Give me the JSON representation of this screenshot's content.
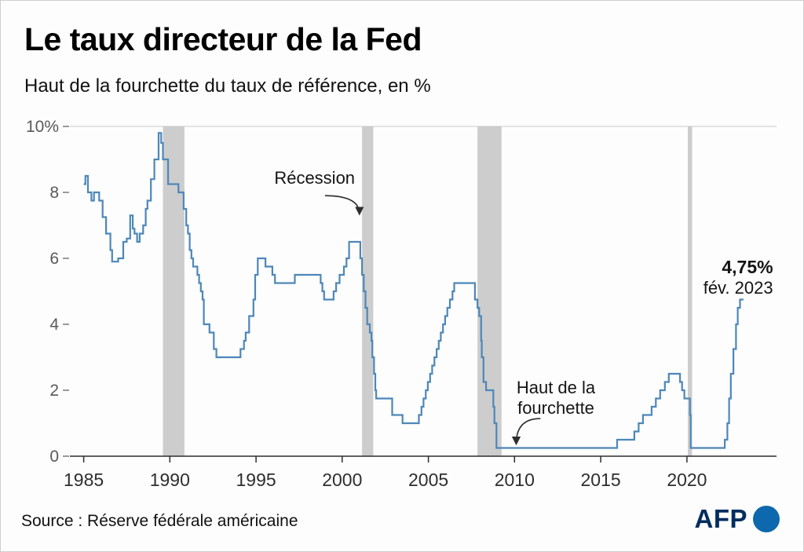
{
  "header": {
    "title": "Le taux directeur de la Fed",
    "subtitle": "Haut de la fourchette du taux de référence, en %"
  },
  "footer": {
    "source": "Source : Réserve fédérale américaine",
    "logo_text": "AFP"
  },
  "chart_data": {
    "type": "line",
    "step": true,
    "title": "Le taux directeur de la Fed",
    "subtitle": "Haut de la fourchette du taux de référence, en %",
    "xlabel": "",
    "ylabel": "%",
    "xlim": [
      1984.2,
      2025.2
    ],
    "ylim": [
      0,
      10
    ],
    "x_ticks": [
      1985,
      1990,
      1995,
      2000,
      2005,
      2010,
      2015,
      2020
    ],
    "y_ticks": [
      0,
      2,
      4,
      6,
      8,
      10
    ],
    "y_tick_labels": [
      "0",
      "2",
      "4",
      "6",
      "8",
      "10%"
    ],
    "grid": "top-line-only",
    "line_color": "#4d87b9",
    "recession_band_color": "#cdcdcd",
    "recessions": [
      [
        1989.6,
        1990.85
      ],
      [
        2001.15,
        2001.8
      ],
      [
        2007.85,
        2009.25
      ],
      [
        2020.05,
        2020.3
      ]
    ],
    "series": [
      {
        "name": "Haut de la fourchette du taux de référence, en %",
        "color": "#4d87b9",
        "points": [
          [
            1985.0,
            8.25
          ],
          [
            1985.1,
            8.5
          ],
          [
            1985.25,
            8.0
          ],
          [
            1985.45,
            7.75
          ],
          [
            1985.6,
            8.0
          ],
          [
            1985.9,
            7.75
          ],
          [
            1986.1,
            7.25
          ],
          [
            1986.3,
            6.75
          ],
          [
            1986.55,
            6.25
          ],
          [
            1986.65,
            5.9
          ],
          [
            1987.0,
            6.0
          ],
          [
            1987.3,
            6.5
          ],
          [
            1987.5,
            6.6
          ],
          [
            1987.7,
            7.3
          ],
          [
            1987.85,
            6.9
          ],
          [
            1987.95,
            6.75
          ],
          [
            1988.1,
            6.5
          ],
          [
            1988.25,
            6.75
          ],
          [
            1988.45,
            7.0
          ],
          [
            1988.6,
            7.5
          ],
          [
            1988.7,
            7.75
          ],
          [
            1988.9,
            8.4
          ],
          [
            1989.1,
            9.0
          ],
          [
            1989.35,
            9.8
          ],
          [
            1989.5,
            9.5
          ],
          [
            1989.6,
            9.0
          ],
          [
            1989.9,
            8.25
          ],
          [
            1990.5,
            8.0
          ],
          [
            1990.8,
            7.5
          ],
          [
            1990.95,
            7.0
          ],
          [
            1991.05,
            6.75
          ],
          [
            1991.15,
            6.25
          ],
          [
            1991.25,
            6.0
          ],
          [
            1991.35,
            5.75
          ],
          [
            1991.6,
            5.5
          ],
          [
            1991.7,
            5.25
          ],
          [
            1991.8,
            5.0
          ],
          [
            1991.9,
            4.75
          ],
          [
            1991.97,
            4.0
          ],
          [
            1992.3,
            3.75
          ],
          [
            1992.55,
            3.25
          ],
          [
            1992.7,
            3.0
          ],
          [
            1994.1,
            3.25
          ],
          [
            1994.3,
            3.5
          ],
          [
            1994.4,
            3.75
          ],
          [
            1994.6,
            4.25
          ],
          [
            1994.85,
            4.75
          ],
          [
            1994.95,
            5.5
          ],
          [
            1995.1,
            6.0
          ],
          [
            1995.55,
            5.75
          ],
          [
            1995.95,
            5.5
          ],
          [
            1996.1,
            5.25
          ],
          [
            1997.25,
            5.5
          ],
          [
            1998.75,
            5.25
          ],
          [
            1998.85,
            5.0
          ],
          [
            1998.95,
            4.75
          ],
          [
            1999.5,
            5.0
          ],
          [
            1999.65,
            5.25
          ],
          [
            1999.85,
            5.5
          ],
          [
            2000.1,
            5.75
          ],
          [
            2000.25,
            6.0
          ],
          [
            2000.4,
            6.5
          ],
          [
            2001.05,
            6.0
          ],
          [
            2001.15,
            5.5
          ],
          [
            2001.25,
            5.0
          ],
          [
            2001.35,
            4.5
          ],
          [
            2001.45,
            4.0
          ],
          [
            2001.6,
            3.75
          ],
          [
            2001.7,
            3.5
          ],
          [
            2001.75,
            3.0
          ],
          [
            2001.85,
            2.5
          ],
          [
            2001.92,
            2.0
          ],
          [
            2001.97,
            1.75
          ],
          [
            2002.9,
            1.25
          ],
          [
            2003.5,
            1.0
          ],
          [
            2004.45,
            1.25
          ],
          [
            2004.6,
            1.5
          ],
          [
            2004.72,
            1.75
          ],
          [
            2004.85,
            2.0
          ],
          [
            2004.97,
            2.25
          ],
          [
            2005.1,
            2.5
          ],
          [
            2005.22,
            2.75
          ],
          [
            2005.35,
            3.0
          ],
          [
            2005.48,
            3.25
          ],
          [
            2005.6,
            3.5
          ],
          [
            2005.72,
            3.75
          ],
          [
            2005.85,
            4.0
          ],
          [
            2005.97,
            4.25
          ],
          [
            2006.1,
            4.5
          ],
          [
            2006.25,
            4.75
          ],
          [
            2006.4,
            5.0
          ],
          [
            2006.5,
            5.25
          ],
          [
            2007.7,
            4.75
          ],
          [
            2007.85,
            4.5
          ],
          [
            2007.95,
            4.25
          ],
          [
            2008.06,
            3.5
          ],
          [
            2008.1,
            3.0
          ],
          [
            2008.2,
            2.25
          ],
          [
            2008.35,
            2.0
          ],
          [
            2008.77,
            1.5
          ],
          [
            2008.83,
            1.0
          ],
          [
            2008.95,
            0.25
          ],
          [
            2015.95,
            0.5
          ],
          [
            2016.95,
            0.75
          ],
          [
            2017.2,
            1.0
          ],
          [
            2017.45,
            1.25
          ],
          [
            2017.95,
            1.5
          ],
          [
            2018.2,
            1.75
          ],
          [
            2018.45,
            2.0
          ],
          [
            2018.72,
            2.25
          ],
          [
            2018.95,
            2.5
          ],
          [
            2019.6,
            2.25
          ],
          [
            2019.72,
            2.0
          ],
          [
            2019.85,
            1.75
          ],
          [
            2020.18,
            1.25
          ],
          [
            2020.22,
            0.25
          ],
          [
            2022.2,
            0.5
          ],
          [
            2022.35,
            1.0
          ],
          [
            2022.45,
            1.75
          ],
          [
            2022.55,
            2.5
          ],
          [
            2022.7,
            3.25
          ],
          [
            2022.85,
            4.0
          ],
          [
            2022.95,
            4.5
          ],
          [
            2023.08,
            4.75
          ]
        ]
      }
    ],
    "annotations": [
      {
        "name": "recession-annotation",
        "x": 1998.4,
        "y": 8.26,
        "anchor": "middle",
        "lines": [
          {
            "t": "Récession",
            "b": false
          }
        ]
      },
      {
        "name": "range-top-annotation",
        "x": 2012.4,
        "y": 1.9,
        "anchor": "middle",
        "lines": [
          {
            "t": "Haut de la",
            "b": false
          },
          {
            "t": "fourchette",
            "b": false
          }
        ]
      },
      {
        "name": "latest-value-annotation",
        "x": 2025.0,
        "y": 5.55,
        "anchor": "end",
        "lines": [
          {
            "t": "4,75%",
            "b": true
          },
          {
            "t": "fév. 2023",
            "b": false
          }
        ]
      }
    ],
    "arrows": [
      {
        "from": [
          1999.0,
          7.9
        ],
        "to": [
          2001.0,
          7.35
        ]
      },
      {
        "from": [
          2011.5,
          1.14
        ],
        "to": [
          2010.1,
          0.38
        ]
      }
    ],
    "latest_value": "4,75%",
    "latest_date": "fév. 2023"
  }
}
